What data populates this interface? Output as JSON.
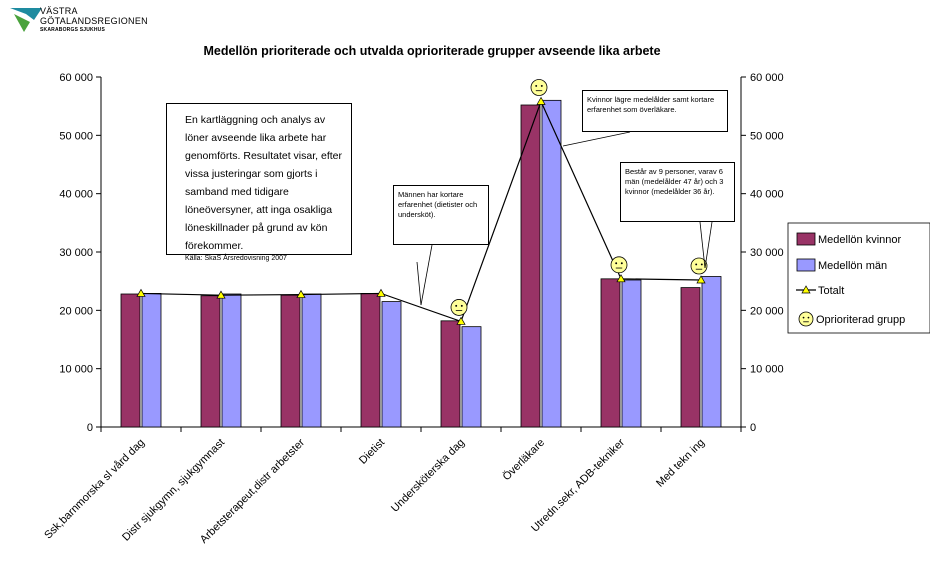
{
  "logo": {
    "line1": "VÄSTRA",
    "line2": "GÖTALANDSREGIONEN",
    "line3": "SKARABORGS SJUKHUS",
    "colors": {
      "teal": "#1e8ba0",
      "green": "#4aa23c"
    }
  },
  "chart_data": {
    "type": "bar",
    "title": "Medellön prioriterade och utvalda oprioriterade grupper avseende lika arbete",
    "categories": [
      "Ssk,barnmorska sl vård dag",
      "Distr sjukgymn, sjukgymnast",
      "Arbetsterapeut,distr arbetster",
      "Dietist",
      "Undersköterska dag",
      "Överläkare",
      "Utredn.sekr, ADB-tekniker",
      "Med tekn ing"
    ],
    "series": [
      {
        "name": "Medellön kvinnor",
        "type": "bar",
        "color": "#993366",
        "values": [
          22800,
          22500,
          22600,
          22900,
          18200,
          55200,
          25400,
          23900
        ]
      },
      {
        "name": "Medellön män",
        "type": "bar",
        "color": "#9999ff",
        "values": [
          22900,
          22800,
          22800,
          21500,
          17200,
          56000,
          25200,
          25800
        ]
      },
      {
        "name": "Totalt",
        "type": "line",
        "color": "#000000",
        "marker_color": "#ffff00",
        "values": [
          22900,
          22600,
          22700,
          22900,
          18100,
          55800,
          25400,
          25200
        ]
      }
    ],
    "unprioritized_marker": {
      "name": "Oprioriterad grupp",
      "category_indices": [
        4,
        5,
        6,
        7
      ]
    },
    "ylim": [
      0,
      60000
    ],
    "yticks": [
      "0",
      "10 000",
      "20 000",
      "30 000",
      "40 000",
      "50 000",
      "60 000"
    ],
    "ytick_values": [
      0,
      10000,
      20000,
      30000,
      40000,
      50000,
      60000
    ],
    "legend_position": "right",
    "grid": false
  },
  "annotations": {
    "main_box": {
      "text": "En kartläggning och analys av löner avseende lika arbete har genomförts. Resultatet visar, efter vissa justeringar som gjorts i samband med tidigare löneöversyner, att inga osakliga löneskillnader på grund av kön förekommer.",
      "source": "Källa: SkaS Årsredovisning 2007"
    },
    "note_underskoterska": "Männen har kortare erfarenhet (dietister och undersköt).",
    "note_overlakare": "Kvinnor lägre medelålder samt kortare erfarenhet som överläkare.",
    "note_medtekn": "Består av 9 personer, varav 6 män (medelålder 47 år) och 3 kvinnor (medelålder 36 år)."
  }
}
